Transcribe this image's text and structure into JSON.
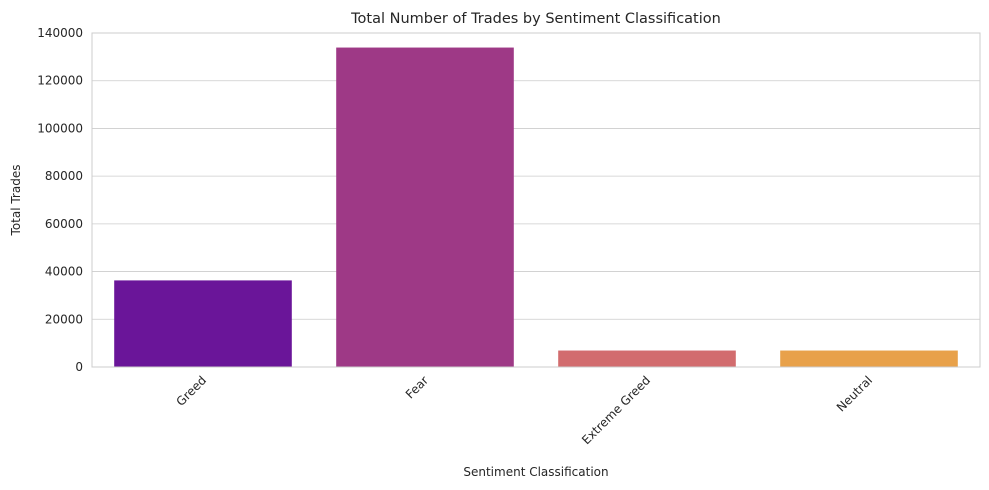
{
  "chart_data": {
    "type": "bar",
    "title": "Total Number of Trades by Sentiment Classification",
    "xlabel": "Sentiment Classification",
    "ylabel": "Total Trades",
    "categories": [
      "Greed",
      "Fear",
      "Extreme Greed",
      "Neutral"
    ],
    "values": [
      36300,
      133900,
      6900,
      6900
    ],
    "colors": [
      "#6a1599",
      "#9e3986",
      "#d26c6e",
      "#e8a14a"
    ],
    "ylim": [
      0,
      140000
    ],
    "yticks": [
      0,
      20000,
      40000,
      60000,
      80000,
      100000,
      120000,
      140000
    ],
    "ytick_labels": [
      "0",
      "20000",
      "40000",
      "60000",
      "80000",
      "100000",
      "120000",
      "140000"
    ],
    "grid": true,
    "grid_axis": "y",
    "xtick_rotation": 45
  }
}
